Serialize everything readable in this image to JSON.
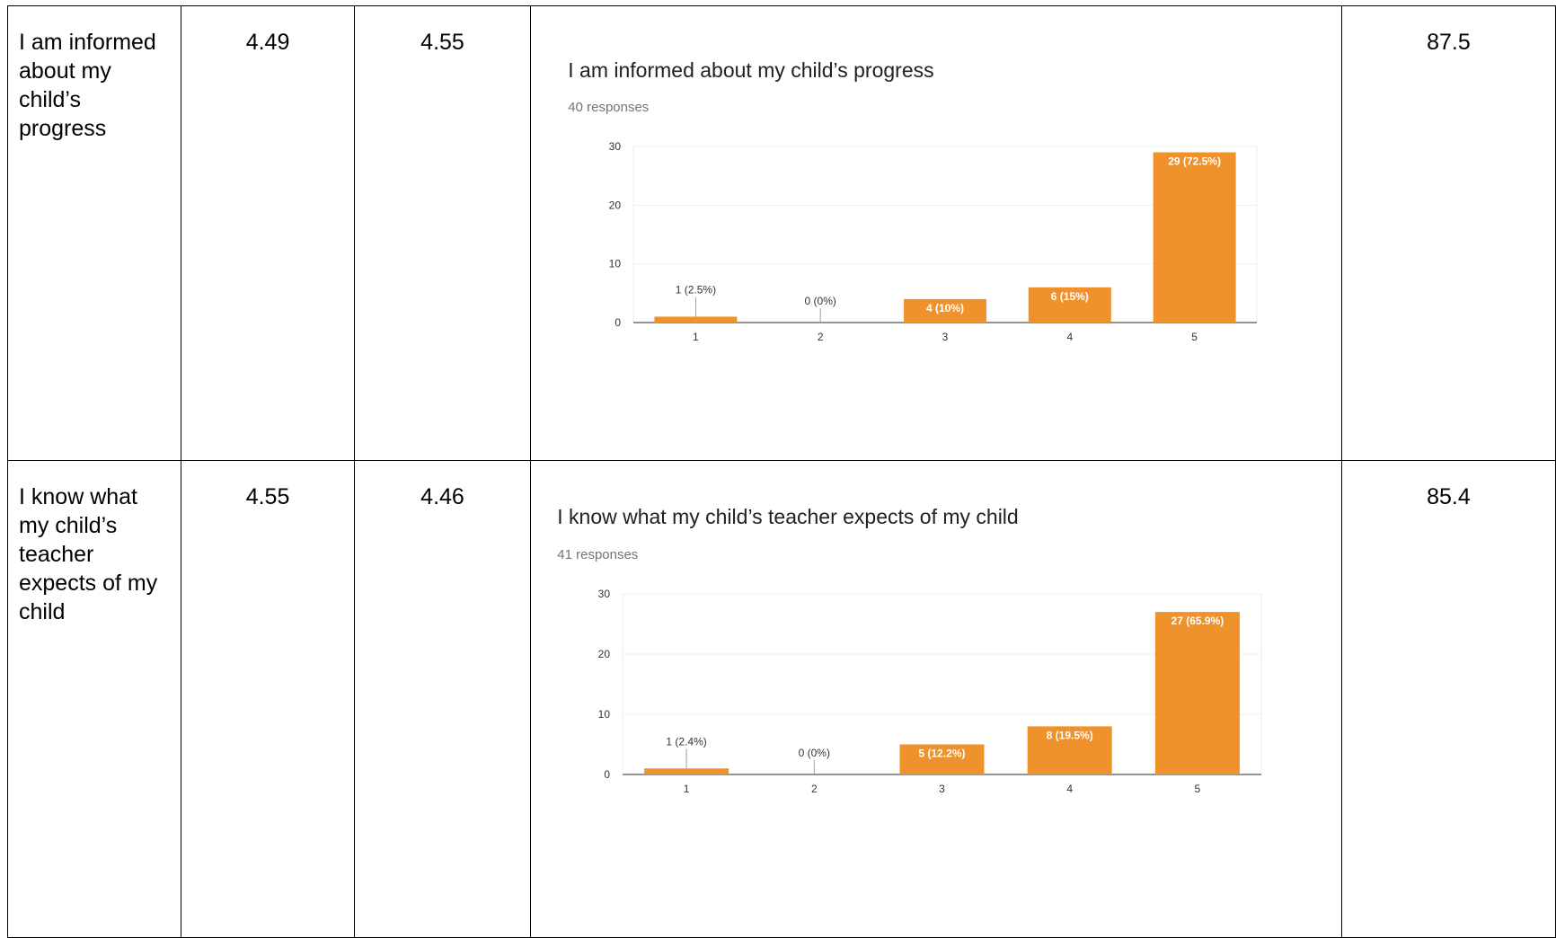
{
  "rows": [
    {
      "question": "I am informed about my child’s progress",
      "score_a": "4.49",
      "score_b": "4.55",
      "percent": "87.5",
      "chart_data": {
        "type": "bar",
        "title": "I am informed about my child’s progress",
        "subtitle": "40 responses",
        "categories": [
          "1",
          "2",
          "3",
          "4",
          "5"
        ],
        "values": [
          1,
          0,
          4,
          6,
          29
        ],
        "data_labels": [
          "1 (2.5%)",
          "0 (0%)",
          "4 (10%)",
          "6 (15%)",
          "29 (72.5%)"
        ],
        "yticks": [
          0,
          10,
          20,
          30
        ],
        "ylim": [
          0,
          30
        ],
        "grid": true,
        "legend": "none",
        "bar_color": "#f0922b"
      }
    },
    {
      "question": "I know what my child’s teacher expects of my child",
      "score_a": "4.55",
      "score_b": "4.46",
      "percent": "85.4",
      "chart_data": {
        "type": "bar",
        "title": "I know what my child’s teacher expects of my child",
        "subtitle": "41 responses",
        "categories": [
          "1",
          "2",
          "3",
          "4",
          "5"
        ],
        "values": [
          1,
          0,
          5,
          8,
          27
        ],
        "data_labels": [
          "1 (2.4%)",
          "0 (0%)",
          "5 (12.2%)",
          "8 (19.5%)",
          "27 (65.9%)"
        ],
        "yticks": [
          0,
          10,
          20,
          30
        ],
        "ylim": [
          0,
          30
        ],
        "grid": true,
        "legend": "none",
        "bar_color": "#f0922b"
      }
    }
  ]
}
